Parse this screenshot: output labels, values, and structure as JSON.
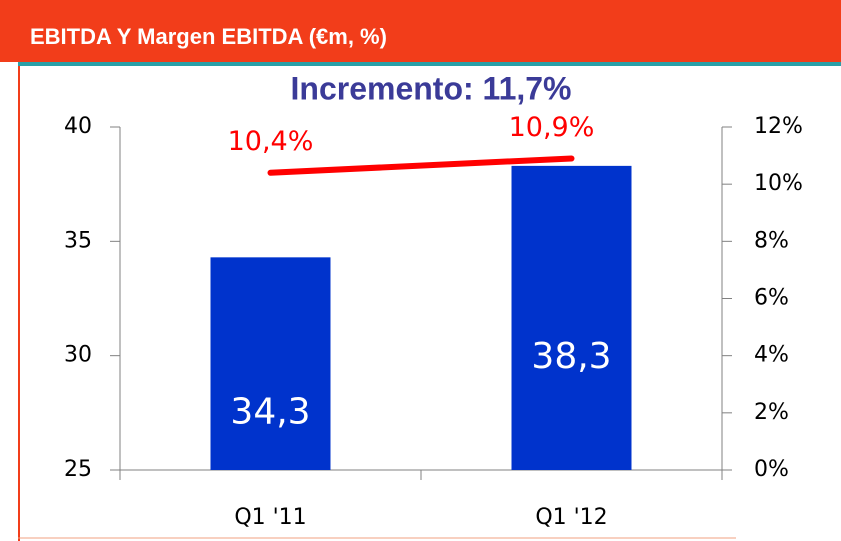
{
  "chart_data": {
    "type": "bar",
    "title": "EBITDA Y Margen EBITDA (€m, %)",
    "annotation": "Incremento: 11,7%",
    "categories": [
      "Q1 '11",
      "Q1 '12"
    ],
    "series": [
      {
        "type": "bar",
        "color": "#0033cc",
        "values": [
          34.3,
          38.3
        ],
        "value_labels": [
          "34,3",
          "38,3"
        ]
      },
      {
        "type": "line",
        "axis": "y2",
        "color": "#ff0000",
        "values": [
          10.4,
          10.9
        ],
        "value_labels": [
          "10,4%",
          "10,9%"
        ]
      }
    ],
    "ylim": [
      25,
      40
    ],
    "yticks": [
      25,
      30,
      35,
      40
    ],
    "y2lim": [
      0,
      12
    ],
    "y2ticks": [
      {
        "value": 0,
        "label": "0%"
      },
      {
        "value": 2,
        "label": "2%"
      },
      {
        "value": 4,
        "label": "4%"
      },
      {
        "value": 6,
        "label": "6%"
      },
      {
        "value": 8,
        "label": "8%"
      },
      {
        "value": 10,
        "label": "10%"
      },
      {
        "value": 12,
        "label": "12%"
      }
    ]
  }
}
